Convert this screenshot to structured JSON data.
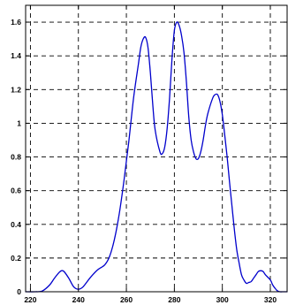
{
  "colors": {
    "series": "#0000cc",
    "grid": "#000000",
    "frame": "#000000",
    "background": "#ffffff"
  },
  "chart_data": {
    "type": "line",
    "title": "",
    "xlabel": "",
    "ylabel": "",
    "xlim": [
      218,
      327
    ],
    "ylim": [
      0,
      1.7
    ],
    "grid": true,
    "legend": "none",
    "x_ticks": [
      220,
      240,
      260,
      280,
      300,
      320
    ],
    "y_ticks": [
      0,
      0.2,
      0.4,
      0.6,
      0.8,
      1,
      1.2,
      1.4,
      1.6
    ],
    "x_tick_labels": [
      "220",
      "240",
      "260",
      "280",
      "300",
      "320"
    ],
    "y_tick_labels": [
      "0",
      "0.2",
      "0.4",
      "0.6",
      "0.8",
      "1",
      "1.2",
      "1.4",
      "1.6"
    ],
    "series": [
      {
        "x": [
          218,
          222,
          225,
          228,
          230,
          232,
          233,
          234,
          236,
          238,
          240,
          242,
          245,
          248,
          251,
          253,
          255,
          257,
          259,
          261,
          263,
          265,
          266,
          267,
          268,
          269,
          270,
          271,
          272,
          274,
          275,
          276,
          277,
          278,
          279,
          280,
          281,
          282,
          283,
          284,
          285,
          286,
          287,
          288,
          289,
          290,
          291,
          292,
          293,
          294,
          296,
          297,
          298,
          299,
          300,
          301,
          302,
          303,
          304,
          305,
          306,
          307,
          308,
          309,
          310,
          311,
          312,
          313,
          314,
          315,
          316,
          317,
          318,
          320,
          321,
          322,
          323,
          324,
          325,
          327
        ],
        "y": [
          0,
          0,
          0.005,
          0.04,
          0.08,
          0.115,
          0.125,
          0.12,
          0.08,
          0.03,
          0.015,
          0.03,
          0.085,
          0.13,
          0.16,
          0.21,
          0.31,
          0.46,
          0.66,
          0.89,
          1.15,
          1.35,
          1.45,
          1.5,
          1.51,
          1.45,
          1.3,
          1.11,
          0.96,
          0.83,
          0.82,
          0.86,
          0.97,
          1.15,
          1.38,
          1.55,
          1.6,
          1.58,
          1.52,
          1.42,
          1.25,
          1.04,
          0.9,
          0.83,
          0.79,
          0.79,
          0.83,
          0.9,
          0.99,
          1.06,
          1.15,
          1.17,
          1.17,
          1.13,
          1.05,
          0.93,
          0.8,
          0.65,
          0.51,
          0.37,
          0.25,
          0.17,
          0.1,
          0.07,
          0.05,
          0.055,
          0.06,
          0.08,
          0.1,
          0.12,
          0.125,
          0.12,
          0.1,
          0.07,
          0.04,
          0.02,
          0.005,
          0,
          0,
          0
        ]
      }
    ]
  }
}
